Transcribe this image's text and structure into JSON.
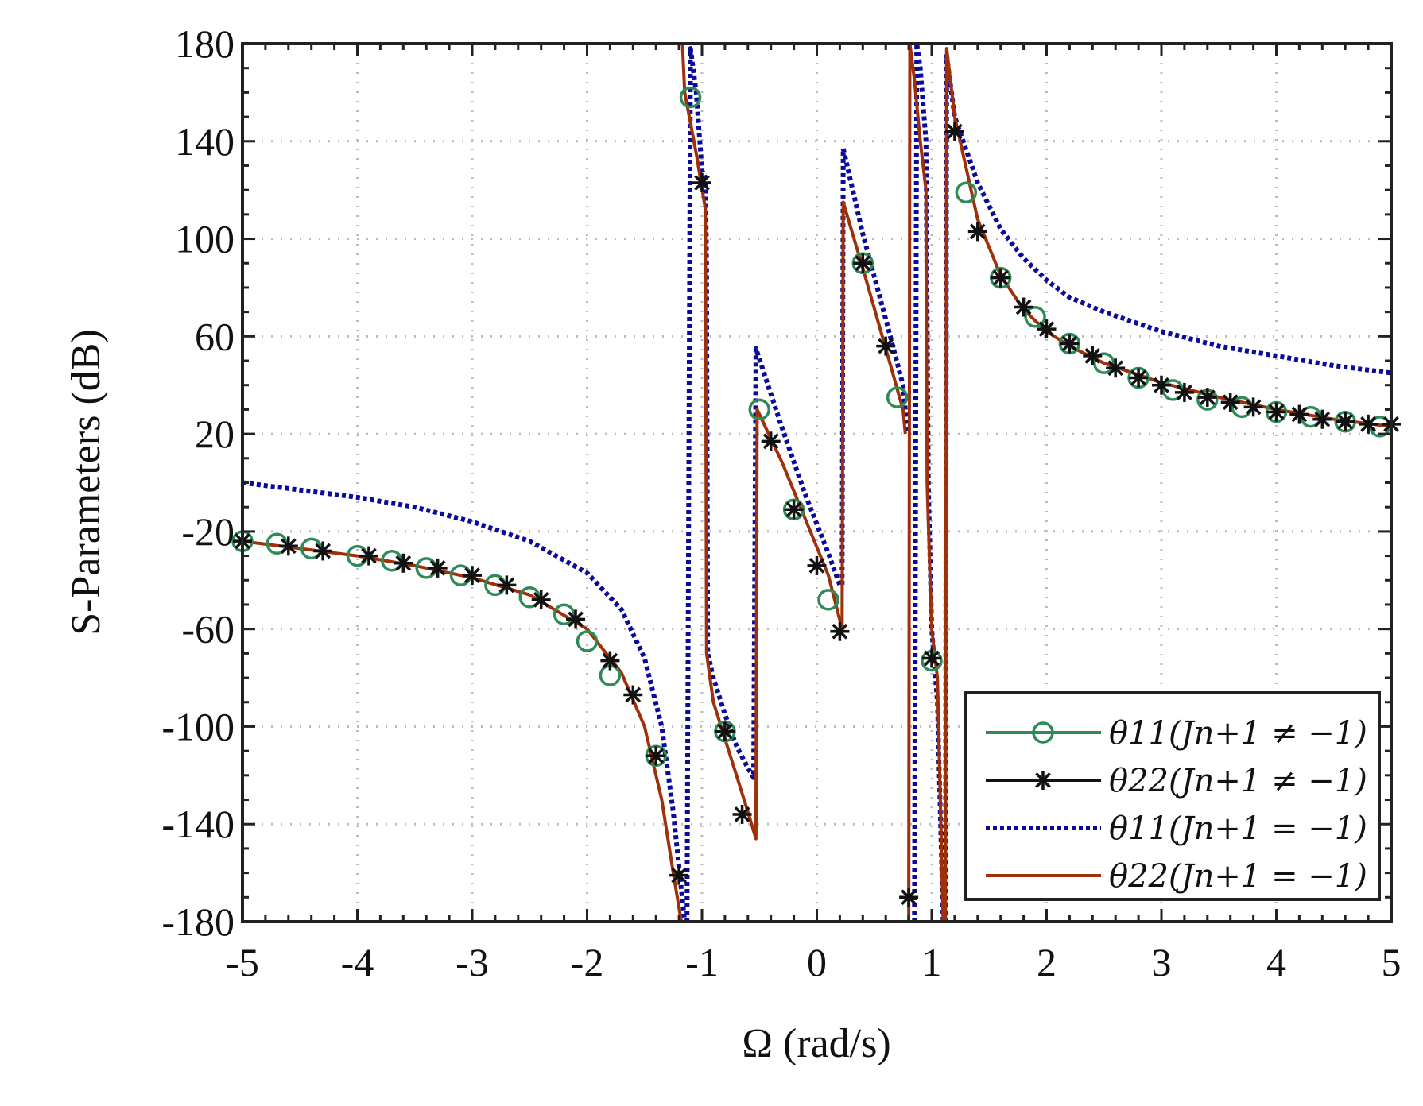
{
  "chart_data": {
    "type": "line",
    "title": "",
    "xlabel": "Ω (rad/s)",
    "ylabel": "S-Parameters (dB)",
    "xlim": [
      -5,
      5
    ],
    "ylim": [
      -180,
      180
    ],
    "xticks": [
      -5,
      -4,
      -3,
      -2,
      -1,
      0,
      1,
      2,
      3,
      4,
      5
    ],
    "xtick_labels": [
      "-5",
      "-4",
      "-3",
      "-2",
      "-1",
      "0",
      "1",
      "2",
      "3",
      "4",
      "5"
    ],
    "yticks": [
      -180,
      -140,
      -100,
      -60,
      -20,
      20,
      60,
      100,
      140,
      180
    ],
    "ytick_labels": [
      "-180",
      "-140",
      "-100",
      "-60",
      "-20",
      "20",
      "60",
      "100",
      "140",
      "180"
    ],
    "grid": true,
    "legend_position": "bottom-right",
    "legend": [
      "θ11(Jn+1 ≠ −1)",
      "θ22(Jn+1 ≠ −1)",
      "θ11(Jn+1 = −1)",
      "θ22(Jn+1 = −1)"
    ],
    "series": [
      {
        "name": "θ11(Jn+1 ≠ −1)",
        "color": "#2e8b57",
        "marker": "circle",
        "line": "solid",
        "points": [
          [
            -5,
            -24
          ],
          [
            -4.7,
            -25
          ],
          [
            -4.4,
            -27
          ],
          [
            -4.0,
            -30
          ],
          [
            -3.7,
            -32
          ],
          [
            -3.4,
            -35
          ],
          [
            -3.1,
            -38
          ],
          [
            -2.8,
            -42
          ],
          [
            -2.5,
            -47
          ],
          [
            -2.2,
            -54
          ],
          [
            -2.0,
            -65
          ],
          [
            -1.8,
            -79
          ],
          [
            -1.4,
            -112
          ],
          [
            -1.1,
            158
          ],
          [
            -0.8,
            -102
          ],
          [
            -0.5,
            30
          ],
          [
            -0.2,
            -11
          ],
          [
            0.1,
            -48
          ],
          [
            0.4,
            90
          ],
          [
            0.7,
            35
          ],
          [
            1.0,
            -73
          ],
          [
            1.3,
            119
          ],
          [
            1.6,
            84
          ],
          [
            1.9,
            68
          ],
          [
            2.2,
            57
          ],
          [
            2.5,
            49
          ],
          [
            2.8,
            43
          ],
          [
            3.1,
            38
          ],
          [
            3.4,
            34
          ],
          [
            3.7,
            31
          ],
          [
            4.0,
            29
          ],
          [
            4.3,
            27
          ],
          [
            4.6,
            25
          ],
          [
            4.9,
            23
          ]
        ]
      },
      {
        "name": "θ22(Jn+1 ≠ −1)",
        "color": "#111111",
        "marker": "star",
        "line": "solid",
        "points": [
          [
            -5,
            -24
          ],
          [
            -4.6,
            -26
          ],
          [
            -4.3,
            -28
          ],
          [
            -3.9,
            -30
          ],
          [
            -3.6,
            -33
          ],
          [
            -3.3,
            -35
          ],
          [
            -3.0,
            -38
          ],
          [
            -2.7,
            -42
          ],
          [
            -2.4,
            -48
          ],
          [
            -2.1,
            -56
          ],
          [
            -1.8,
            -73
          ],
          [
            -1.6,
            -87
          ],
          [
            -1.4,
            -112
          ],
          [
            -1.2,
            -161
          ],
          [
            -1.0,
            123
          ],
          [
            -0.8,
            -102
          ],
          [
            -0.65,
            -136
          ],
          [
            -0.4,
            17
          ],
          [
            -0.2,
            -11
          ],
          [
            0.0,
            -34
          ],
          [
            0.2,
            -61
          ],
          [
            0.4,
            90
          ],
          [
            0.6,
            56
          ],
          [
            0.8,
            -170
          ],
          [
            1.0,
            -72
          ],
          [
            1.2,
            144
          ],
          [
            1.4,
            103
          ],
          [
            1.6,
            84
          ],
          [
            1.8,
            72
          ],
          [
            2.0,
            63
          ],
          [
            2.2,
            57
          ],
          [
            2.4,
            52
          ],
          [
            2.6,
            47
          ],
          [
            2.8,
            43
          ],
          [
            3.0,
            40
          ],
          [
            3.2,
            37
          ],
          [
            3.4,
            35
          ],
          [
            3.6,
            33
          ],
          [
            3.8,
            31
          ],
          [
            4.0,
            29
          ],
          [
            4.2,
            28
          ],
          [
            4.4,
            26
          ],
          [
            4.6,
            25
          ],
          [
            4.8,
            24
          ],
          [
            5.0,
            24
          ]
        ]
      },
      {
        "name": "θ11(Jn+1 = −1)",
        "color": "#0a0a9c",
        "marker": "none",
        "line": "dotted",
        "points": [
          [
            -5,
            0
          ],
          [
            -4.5,
            -3
          ],
          [
            -4,
            -6
          ],
          [
            -3.5,
            -10
          ],
          [
            -3,
            -16
          ],
          [
            -2.5,
            -24
          ],
          [
            -2,
            -37
          ],
          [
            -1.7,
            -52
          ],
          [
            -1.5,
            -72
          ],
          [
            -1.35,
            -100
          ],
          [
            -1.25,
            -135
          ],
          [
            -1.15,
            -180
          ],
          null,
          [
            -1.13,
            -180
          ],
          [
            -1.1,
            178
          ],
          [
            -1.05,
            160
          ],
          [
            -1.0,
            128
          ],
          [
            -0.97,
            125
          ],
          [
            -0.96,
            90
          ],
          [
            -0.95,
            -70
          ],
          [
            -0.9,
            -80
          ],
          [
            -0.8,
            -95
          ],
          [
            -0.7,
            -108
          ],
          [
            -0.6,
            -117
          ],
          [
            -0.55,
            -121
          ],
          [
            -0.53,
            55
          ],
          [
            -0.3,
            22
          ],
          [
            -0.1,
            -5
          ],
          [
            0.1,
            -29
          ],
          [
            0.2,
            -42
          ],
          [
            0.22,
            -42
          ],
          [
            0.23,
            137
          ],
          [
            0.4,
            102
          ],
          [
            0.6,
            67
          ],
          [
            0.75,
            40
          ],
          [
            0.78,
            25
          ],
          [
            0.8,
            20
          ],
          null,
          [
            0.85,
            -180
          ],
          [
            0.87,
            180
          ],
          [
            0.9,
            170
          ],
          [
            0.95,
            140
          ],
          [
            0.97,
            0
          ],
          [
            1.0,
            -60
          ],
          [
            1.05,
            -90
          ],
          [
            1.1,
            -180
          ],
          null,
          [
            1.12,
            -180
          ],
          [
            1.13,
            175
          ],
          [
            1.2,
            150
          ],
          [
            1.4,
            123
          ],
          [
            1.6,
            104
          ],
          [
            1.8,
            92
          ],
          [
            2.0,
            83
          ],
          [
            2.2,
            76
          ],
          [
            2.5,
            70
          ],
          [
            3.0,
            62
          ],
          [
            3.5,
            56
          ],
          [
            4.0,
            52
          ],
          [
            4.5,
            48
          ],
          [
            5.0,
            45
          ]
        ]
      },
      {
        "name": "θ22(Jn+1 = −1)",
        "color": "#a0300a",
        "marker": "none",
        "line": "solid",
        "points": [
          [
            -5,
            -24
          ],
          [
            -4.5,
            -27
          ],
          [
            -4,
            -30
          ],
          [
            -3.5,
            -34
          ],
          [
            -3,
            -39
          ],
          [
            -2.5,
            -46
          ],
          [
            -2,
            -60
          ],
          [
            -1.7,
            -78
          ],
          [
            -1.5,
            -100
          ],
          [
            -1.35,
            -130
          ],
          [
            -1.25,
            -160
          ],
          [
            -1.18,
            -180
          ],
          null,
          [
            -1.17,
            180
          ],
          [
            -1.15,
            160
          ],
          [
            -1.05,
            135
          ],
          [
            -0.98,
            115
          ],
          [
            -0.97,
            112
          ],
          [
            -0.96,
            -70
          ],
          [
            -0.9,
            -90
          ],
          [
            -0.8,
            -105
          ],
          [
            -0.7,
            -120
          ],
          [
            -0.6,
            -135
          ],
          [
            -0.53,
            -146
          ],
          [
            -0.52,
            30
          ],
          [
            -0.3,
            8
          ],
          [
            -0.1,
            -15
          ],
          [
            0.1,
            -38
          ],
          [
            0.22,
            -60
          ],
          [
            0.23,
            115
          ],
          [
            0.4,
            88
          ],
          [
            0.6,
            55
          ],
          [
            0.75,
            30
          ],
          [
            0.77,
            20
          ],
          null,
          [
            0.8,
            -180
          ],
          [
            0.81,
            180
          ],
          [
            0.85,
            165
          ],
          [
            0.9,
            140
          ],
          [
            0.95,
            120
          ],
          [
            0.96,
            0
          ],
          [
            1.0,
            -60
          ],
          [
            1.05,
            -80
          ],
          [
            1.1,
            -180
          ],
          null,
          [
            1.12,
            -180
          ],
          [
            1.13,
            178
          ],
          [
            1.2,
            150
          ],
          [
            1.4,
            108
          ],
          [
            1.6,
            85
          ],
          [
            1.8,
            71
          ],
          [
            2.0,
            62
          ],
          [
            2.2,
            56
          ],
          [
            2.5,
            49
          ],
          [
            3.0,
            41
          ],
          [
            3.5,
            35
          ],
          [
            4.0,
            30
          ],
          [
            4.5,
            26
          ],
          [
            5.0,
            23
          ]
        ]
      }
    ]
  }
}
